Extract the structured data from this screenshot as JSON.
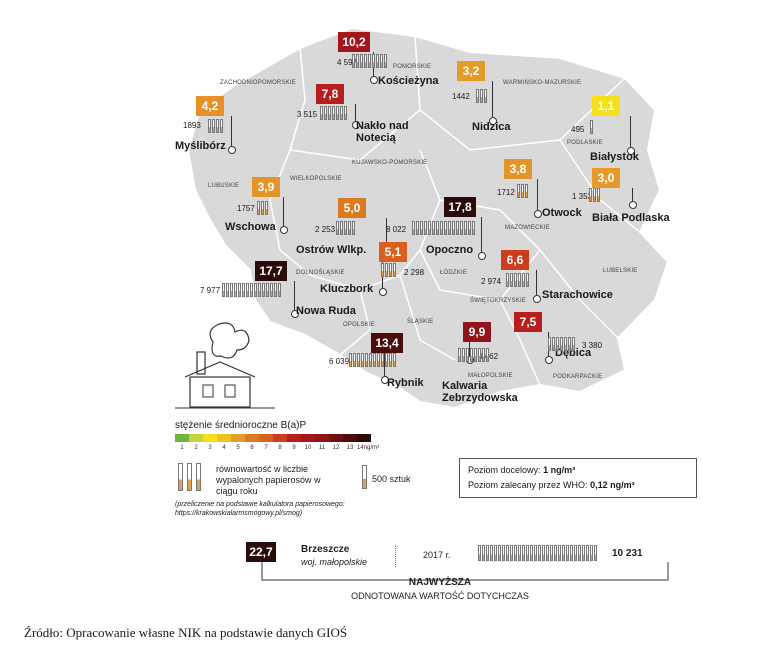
{
  "regions": [
    "POMORSKIE",
    "ZACHODNIOPOMORSKIE",
    "WARMIŃSKO-MAZURSKIE",
    "PODLASKIE",
    "KUJAWSKO-POMORSKIE",
    "WIELKOPOLSKIE",
    "LUBUSKIE",
    "MAZOWIECKIE",
    "DOLNOŚLĄSKIE",
    "ŁÓDZKIE",
    "LUBELSKIE",
    "ŚWIĘTOKRZYSKIE",
    "OPOLSKIE",
    "ŚLĄSKIE",
    "MAŁOPOLSKIE",
    "PODKARPACKIE"
  ],
  "stations": [
    {
      "city": "Kościeżyna",
      "value": "10,2",
      "count": "4 597",
      "color": "#a3171c"
    },
    {
      "city": "Nakło nad Notecią",
      "value": "7,8",
      "count": "3 515",
      "color": "#b81e1e"
    },
    {
      "city": "Myślibórz",
      "value": "4,2",
      "count": "1893",
      "color": "#e59127"
    },
    {
      "city": "Nidzica",
      "value": "3,2",
      "count": "1442",
      "color": "#e89a28"
    },
    {
      "city": "Białystok",
      "value": "1,1",
      "count": "495",
      "color": "#f5de1a"
    },
    {
      "city": "Wschowa",
      "value": "3,9",
      "count": "1757",
      "color": "#e4952a"
    },
    {
      "city": "Ostrów Wlkp.",
      "value": "5,0",
      "count": "2 253",
      "color": "#dc7a22"
    },
    {
      "city": "Opoczno",
      "value": "17,8",
      "count": "8 022",
      "color": "#2a0b09"
    },
    {
      "city": "Otwock",
      "value": "3,8",
      "count": "1712",
      "color": "#e4952a"
    },
    {
      "city": "Biała Podlaska",
      "value": "3,0",
      "count": "1 352",
      "color": "#e89a28"
    },
    {
      "city": "Nowa Ruda",
      "value": "17,7",
      "count": "7 977",
      "color": "#2a0b09"
    },
    {
      "city": "Kluczbork",
      "value": "5,1",
      "count": "2 298",
      "color": "#d8611f"
    },
    {
      "city": "Starachowice",
      "value": "6,6",
      "count": "2 974",
      "color": "#cc3d1c"
    },
    {
      "city": "Rybnik",
      "value": "13,4",
      "count": "6 039",
      "color": "#4a0d0c"
    },
    {
      "city": "Kalwaria Zebrzydowska",
      "value": "9,9",
      "count": "4 462",
      "color": "#8f141b"
    },
    {
      "city": "Dębica",
      "value": "7,5",
      "count": "3 380",
      "color": "#b81e1e"
    }
  ],
  "legend": {
    "title": "stężenie średnioroczne B(a)P",
    "scale_colors": [
      "#6db33f",
      "#c6d43a",
      "#f5de1a",
      "#f1c21f",
      "#e89a28",
      "#dc7a22",
      "#d8611f",
      "#cc3d1c",
      "#b81e1e",
      "#a3171c",
      "#8f141b",
      "#6b100f",
      "#4a0d0c",
      "#2a0b09"
    ],
    "scale_labels": [
      "1",
      "2",
      "3",
      "4",
      "5",
      "6",
      "7",
      "8",
      "9",
      "10",
      "11",
      "12",
      "13",
      "14ng/m³"
    ],
    "equivalent": "równowartość w liczbie wypalonych papierosów w ciągu roku",
    "pieces": "500 sztuk",
    "conversion_note": "(przeliczenie na podstawie kalkulatora papierosowego: https://krakowskialarmsmogowy.pl/smog)"
  },
  "targets": {
    "line1_label": "Poziom docelowy:",
    "line1_value": "1 ng/m³",
    "line2_label": "Poziom zalecany przez WHO:",
    "line2_value": "0,12 ng/m³"
  },
  "highest": {
    "value": "22,7",
    "city": "Brzeszcze",
    "region": "woj. małopolskie",
    "year": "2017 r.",
    "count": "10 231",
    "title": "NAJWYŻSZA",
    "subtitle": "ODNOTOWANA WARTOŚĆ DOTYCHCZAS"
  },
  "source": "Źródło: Opracowanie własne NIK na podstawie danych GIOŚ"
}
